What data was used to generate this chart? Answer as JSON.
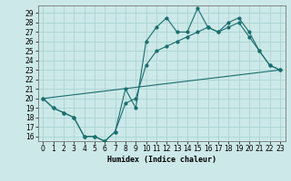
{
  "title": "",
  "xlabel": "Humidex (Indice chaleur)",
  "bg_color": "#cce8e8",
  "grid_color": "#aad4d4",
  "line_color": "#1a6e6e",
  "xlim": [
    -0.5,
    23.5
  ],
  "ylim": [
    15.5,
    29.8
  ],
  "yticks": [
    16,
    17,
    18,
    19,
    20,
    21,
    22,
    23,
    24,
    25,
    26,
    27,
    28,
    29
  ],
  "xticks": [
    0,
    1,
    2,
    3,
    4,
    5,
    6,
    7,
    8,
    9,
    10,
    11,
    12,
    13,
    14,
    15,
    16,
    17,
    18,
    19,
    20,
    21,
    22,
    23
  ],
  "line1_x": [
    0,
    1,
    2,
    3,
    4,
    5,
    6,
    7,
    8,
    9,
    10,
    11,
    12,
    13,
    14,
    15,
    16,
    17,
    18,
    19,
    20,
    21,
    22,
    23
  ],
  "line1_y": [
    20,
    19,
    18.5,
    18,
    16,
    16,
    15.5,
    16.5,
    21,
    19,
    26,
    27.5,
    28.5,
    27,
    27,
    29.5,
    27.5,
    27,
    28,
    28.5,
    27,
    25,
    23.5,
    23
  ],
  "line2_x": [
    0,
    1,
    2,
    3,
    4,
    5,
    6,
    7,
    8,
    9,
    10,
    11,
    12,
    13,
    14,
    15,
    16,
    17,
    18,
    19,
    20,
    21,
    22,
    23
  ],
  "line2_y": [
    20,
    19,
    18.5,
    18,
    16,
    16,
    15.5,
    16.5,
    19.5,
    20,
    23.5,
    25,
    25.5,
    26,
    26.5,
    27,
    27.5,
    27,
    27.5,
    28,
    26.5,
    25,
    23.5,
    23
  ],
  "line3_x": [
    0,
    23
  ],
  "line3_y": [
    20,
    23
  ],
  "tick_fontsize": 5.5,
  "xlabel_fontsize": 6.0
}
